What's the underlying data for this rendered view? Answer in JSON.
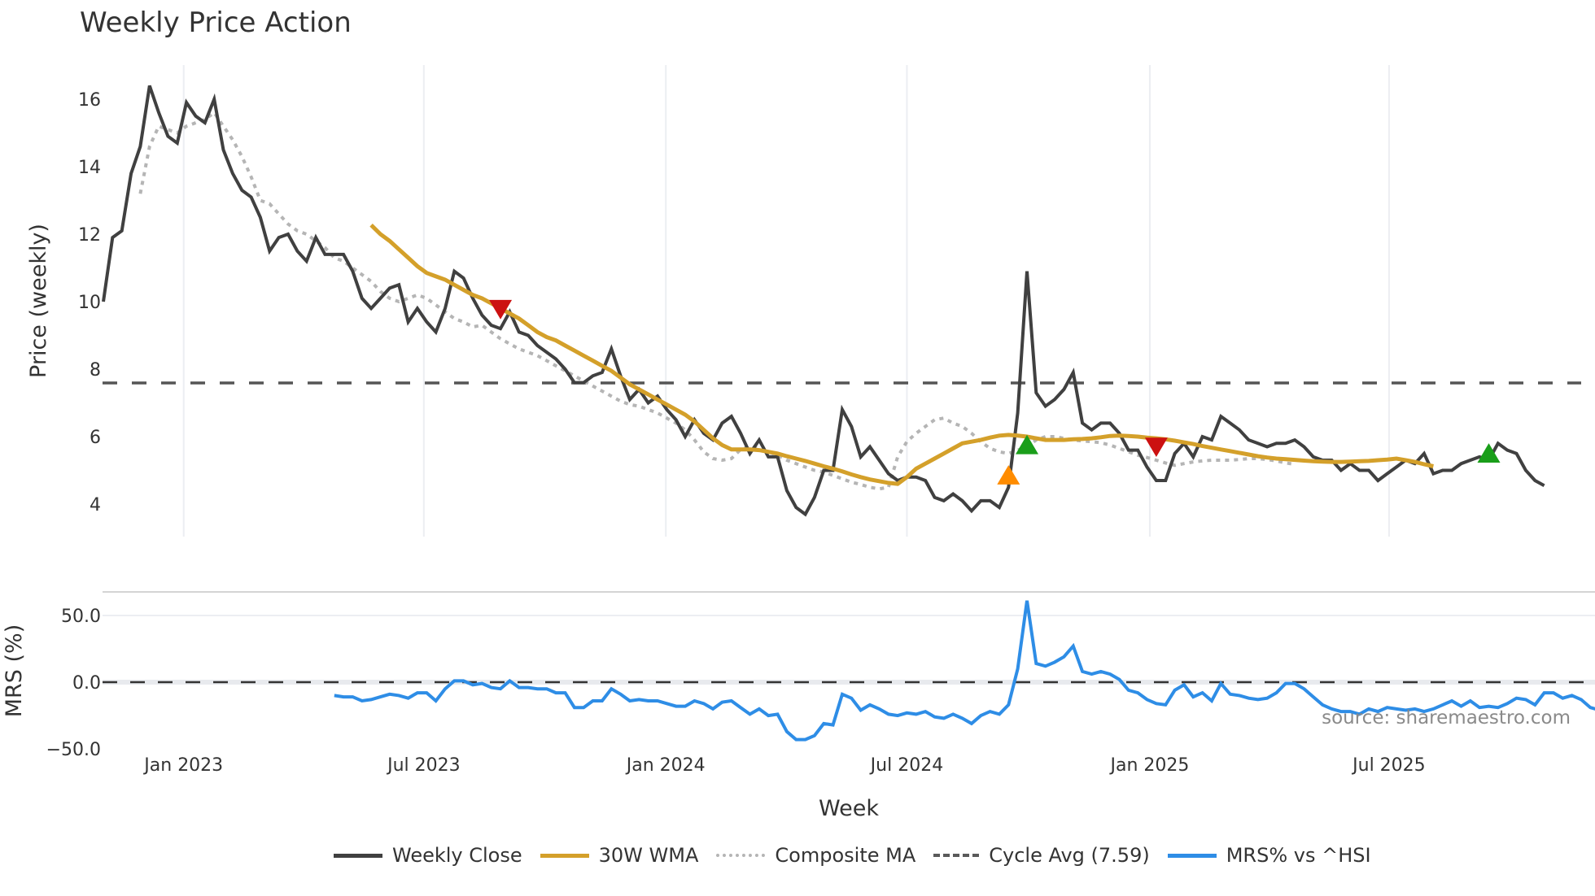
{
  "header": {
    "title": "Weekly Price Action"
  },
  "colors": {
    "close": "#404040",
    "wma": "#d4a02a",
    "composite": "#b5b5b5",
    "cycle": "#555555",
    "mrs": "#2e8de6",
    "marker_sell": "#cc1111",
    "marker_buy": "#1a9e1a",
    "marker_alt": "#ff8c00",
    "grid": "#eceef2"
  },
  "legend": {
    "items": [
      {
        "label": "Weekly Close",
        "style": "solid-dark"
      },
      {
        "label": "30W WMA",
        "style": "solid-gold"
      },
      {
        "label": "Composite MA",
        "style": "dot"
      },
      {
        "label": "Cycle Avg (7.59)",
        "style": "dash"
      },
      {
        "label": "MRS% vs ^HSI",
        "style": "solid-blue"
      }
    ]
  },
  "watermark": "source: sharemaestro.com",
  "chart_data": [
    {
      "type": "line",
      "title": "Weekly Price Action",
      "xlabel": "Week",
      "ylabel": "Price (weekly)",
      "ylim": [
        3.0,
        17.0
      ],
      "yticks": [
        4,
        6,
        8,
        10,
        12,
        14,
        16
      ],
      "xticks": [
        "Jan 2023",
        "Jul 2023",
        "Jan 2024",
        "Jul 2024",
        "Jan 2025",
        "Jul 2025"
      ],
      "xtick_week_index": [
        8.7,
        34.7,
        60.9,
        87.0,
        113.3,
        139.2
      ],
      "grid": true,
      "legend_position": "bottom",
      "cycle_avg": 7.59,
      "series": [
        {
          "name": "Weekly Close",
          "start_index": 0,
          "values": [
            10.0,
            11.9,
            12.1,
            13.8,
            14.6,
            16.4,
            15.6,
            14.9,
            14.7,
            15.9,
            15.5,
            15.3,
            16.0,
            14.5,
            13.8,
            13.3,
            13.1,
            12.5,
            11.5,
            11.9,
            12.0,
            11.5,
            11.2,
            11.9,
            11.4,
            11.4,
            11.4,
            10.9,
            10.1,
            9.8,
            10.1,
            10.4,
            10.5,
            9.4,
            9.8,
            9.4,
            9.1,
            9.8,
            10.9,
            10.7,
            10.1,
            9.6,
            9.3,
            9.2,
            9.7,
            9.1,
            9.0,
            8.7,
            8.5,
            8.3,
            8.0,
            7.6,
            7.6,
            7.8,
            7.9,
            8.6,
            7.8,
            7.1,
            7.4,
            7.0,
            7.2,
            6.8,
            6.5,
            6.0,
            6.5,
            6.1,
            5.9,
            6.4,
            6.6,
            6.1,
            5.5,
            5.9,
            5.4,
            5.4,
            4.4,
            3.9,
            3.7,
            4.2,
            5.0,
            5.0,
            6.8,
            6.3,
            5.4,
            5.7,
            5.3,
            4.9,
            4.7,
            4.8,
            4.8,
            4.7,
            4.2,
            4.1,
            4.3,
            4.1,
            3.8,
            4.1,
            4.1,
            3.9,
            4.5,
            6.7,
            10.9,
            7.3,
            6.9,
            7.1,
            7.4,
            7.9,
            6.4,
            6.2,
            6.4,
            6.4,
            6.1,
            5.6,
            5.6,
            5.1,
            4.7,
            4.7,
            5.5,
            5.8,
            5.4,
            6.0,
            5.9,
            6.6,
            6.4,
            6.2,
            5.9,
            5.8,
            5.7,
            5.8,
            5.8,
            5.9,
            5.7,
            5.4,
            5.3,
            5.3,
            5.0,
            5.2,
            5.0,
            5.0,
            4.7,
            4.9,
            5.1,
            5.3,
            5.2,
            5.5,
            4.9,
            5.0,
            5.0,
            5.2,
            5.3,
            5.4,
            5.3,
            5.8,
            5.6,
            5.5,
            5.0,
            4.7,
            4.55
          ]
        },
        {
          "name": "30W WMA",
          "start_index": 29,
          "values": [
            12.27,
            12.0,
            11.8,
            11.55,
            11.3,
            11.05,
            10.85,
            10.75,
            10.65,
            10.5,
            10.35,
            10.2,
            10.1,
            9.95,
            9.8,
            9.65,
            9.5,
            9.3,
            9.1,
            8.95,
            8.85,
            8.7,
            8.55,
            8.4,
            8.25,
            8.1,
            7.95,
            7.75,
            7.55,
            7.4,
            7.25,
            7.1,
            6.95,
            6.8,
            6.65,
            6.45,
            6.2,
            5.95,
            5.75,
            5.62,
            5.62,
            5.62,
            5.6,
            5.55,
            5.5,
            5.42,
            5.35,
            5.28,
            5.2,
            5.12,
            5.05,
            4.97,
            4.88,
            4.8,
            4.73,
            4.68,
            4.63,
            4.6,
            4.8,
            5.05,
            5.2,
            5.35,
            5.5,
            5.65,
            5.8,
            5.85,
            5.9,
            5.97,
            6.03,
            6.05,
            6.03,
            6.0,
            5.95,
            5.9,
            5.9,
            5.9,
            5.92,
            5.93,
            5.95,
            5.98,
            6.02,
            6.03,
            6.02,
            6.0,
            5.97,
            5.95,
            5.92,
            5.88,
            5.83,
            5.78,
            5.72,
            5.67,
            5.62,
            5.57,
            5.52,
            5.47,
            5.42,
            5.38,
            5.35,
            5.33,
            5.31,
            5.29,
            5.27,
            5.26,
            5.25,
            5.25,
            5.26,
            5.27,
            5.28,
            5.3,
            5.32,
            5.35,
            5.3,
            5.25,
            5.18,
            5.12
          ]
        },
        {
          "name": "Composite MA",
          "start_index": 4,
          "values": [
            13.2,
            14.6,
            15.2,
            15.1,
            15.0,
            15.2,
            15.3,
            15.4,
            15.6,
            15.2,
            14.8,
            14.3,
            13.7,
            13.0,
            12.9,
            12.6,
            12.3,
            12.1,
            12.0,
            11.8,
            11.6,
            11.3,
            11.2,
            11.0,
            10.8,
            10.6,
            10.3,
            10.1,
            10.0,
            10.1,
            10.2,
            10.1,
            9.9,
            9.7,
            9.5,
            9.4,
            9.25,
            9.3,
            9.1,
            8.9,
            8.75,
            8.6,
            8.5,
            8.4,
            8.25,
            8.1,
            7.95,
            7.8,
            7.65,
            7.5,
            7.35,
            7.2,
            7.05,
            6.95,
            6.9,
            6.8,
            6.7,
            6.55,
            6.4,
            6.2,
            5.9,
            5.55,
            5.35,
            5.3,
            5.35,
            5.62,
            5.7,
            5.65,
            5.55,
            5.45,
            5.3,
            5.2,
            5.1,
            5.0,
            4.95,
            4.85,
            4.75,
            4.65,
            4.58,
            4.5,
            4.45,
            4.5,
            5.4,
            5.85,
            6.1,
            6.3,
            6.5,
            6.55,
            6.4,
            6.3,
            6.1,
            5.85,
            5.65,
            5.55,
            5.5,
            5.6,
            5.7,
            5.9,
            6.0,
            6.0,
            5.95,
            5.9,
            5.87,
            5.85,
            5.82,
            5.75,
            5.65,
            5.55,
            5.45,
            5.38,
            5.3,
            5.22,
            5.15,
            5.2,
            5.25,
            5.28,
            5.3,
            5.3,
            5.3,
            5.32,
            5.35,
            5.35,
            5.32,
            5.28,
            5.22,
            5.18
          ]
        },
        {
          "name": "MRS% vs ^HSI",
          "panel": "lower",
          "start_index": 25,
          "values": [
            -10,
            -11,
            -11,
            -14,
            -13,
            -11,
            -9,
            -10,
            -12,
            -8,
            -8,
            -14,
            -5,
            1,
            1,
            -2,
            -1,
            -4,
            -5,
            1,
            -4,
            -4,
            -5,
            -5,
            -8,
            -8,
            -19,
            -19,
            -14,
            -14,
            -5,
            -9,
            -14,
            -13,
            -14,
            -14,
            -16,
            -18,
            -18,
            -14,
            -16,
            -20,
            -15,
            -14,
            -19,
            -24,
            -20,
            -25,
            -24,
            -37,
            -43,
            -43,
            -40,
            -31,
            -32,
            -9,
            -12,
            -21,
            -17,
            -20,
            -24,
            -25,
            -23,
            -24,
            -22,
            -26,
            -27,
            -24,
            -27,
            -31,
            -25,
            -22,
            -24,
            -17,
            10,
            61,
            14,
            12,
            15,
            19,
            27,
            8,
            6,
            8,
            6,
            2,
            -6,
            -8,
            -13,
            -16,
            -17,
            -6,
            -2,
            -11,
            -8,
            -14,
            -1,
            -9,
            -10,
            -12,
            -13,
            -12,
            -8,
            -1,
            -1,
            -5,
            -11,
            -17,
            -20,
            -22,
            -22,
            -24,
            -20,
            -22,
            -19,
            -20,
            -21,
            -20,
            -22,
            -20,
            -17,
            -14,
            -18,
            -14,
            -19,
            -18,
            -19,
            -16,
            -12,
            -13,
            -17,
            -8,
            -8,
            -12,
            -10,
            -13,
            -19,
            -21
          ]
        }
      ],
      "markers": [
        {
          "type": "sell",
          "shape": "triangle-down",
          "index": 43,
          "value": 9.78
        },
        {
          "type": "alt",
          "shape": "triangle-up",
          "index": 98,
          "value": 4.85
        },
        {
          "type": "buy",
          "shape": "triangle-up",
          "index": 100,
          "value": 5.75
        },
        {
          "type": "sell",
          "shape": "triangle-down",
          "index": 114,
          "value": 5.7
        },
        {
          "type": "buy",
          "shape": "triangle-up",
          "index": 150,
          "value": 5.5
        }
      ]
    },
    {
      "type": "line",
      "title": "",
      "xlabel": "Week",
      "ylabel": "MRS (%)",
      "ylim": [
        -55,
        70
      ],
      "yticks": [
        "50.0",
        "0.0",
        "−50.0"
      ],
      "ytick_values": [
        50,
        0,
        -50
      ],
      "reference_line": 0,
      "series_ref": "MRS% vs ^HSI"
    }
  ],
  "axes": {
    "price_ylabel": "Price (weekly)",
    "mrs_ylabel": "MRS (%)",
    "xlabel": "Week"
  }
}
